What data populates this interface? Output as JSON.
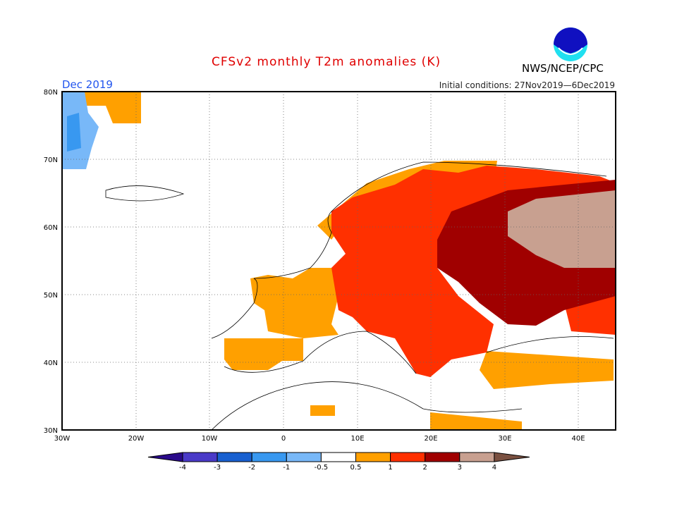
{
  "header": {
    "title": "CFSv2 monthly T2m anomalies (K)",
    "month": "Dec 2019",
    "initial_conditions": "Initial conditions: 27Nov2019—6Dec2019",
    "agency": "NWS/NCEP/CPC",
    "logo_text": "NOAA"
  },
  "axes": {
    "lat_labels": [
      "80N",
      "70N",
      "60N",
      "50N",
      "40N",
      "30N"
    ],
    "lon_labels": [
      "30W",
      "20W",
      "10W",
      "0",
      "10E",
      "20E",
      "30E",
      "40E"
    ]
  },
  "colorbar": {
    "labels": [
      "-4",
      "-3",
      "-2",
      "-1",
      "-0.5",
      "0.5",
      "1",
      "2",
      "3",
      "4"
    ],
    "colors": [
      "#2a0a8a",
      "#4a3ac8",
      "#1860d0",
      "#3898f0",
      "#78b8f8",
      "#ffffff",
      "#ffa000",
      "#ff3000",
      "#a00000",
      "#c8a090",
      "#7a5040"
    ]
  }
}
